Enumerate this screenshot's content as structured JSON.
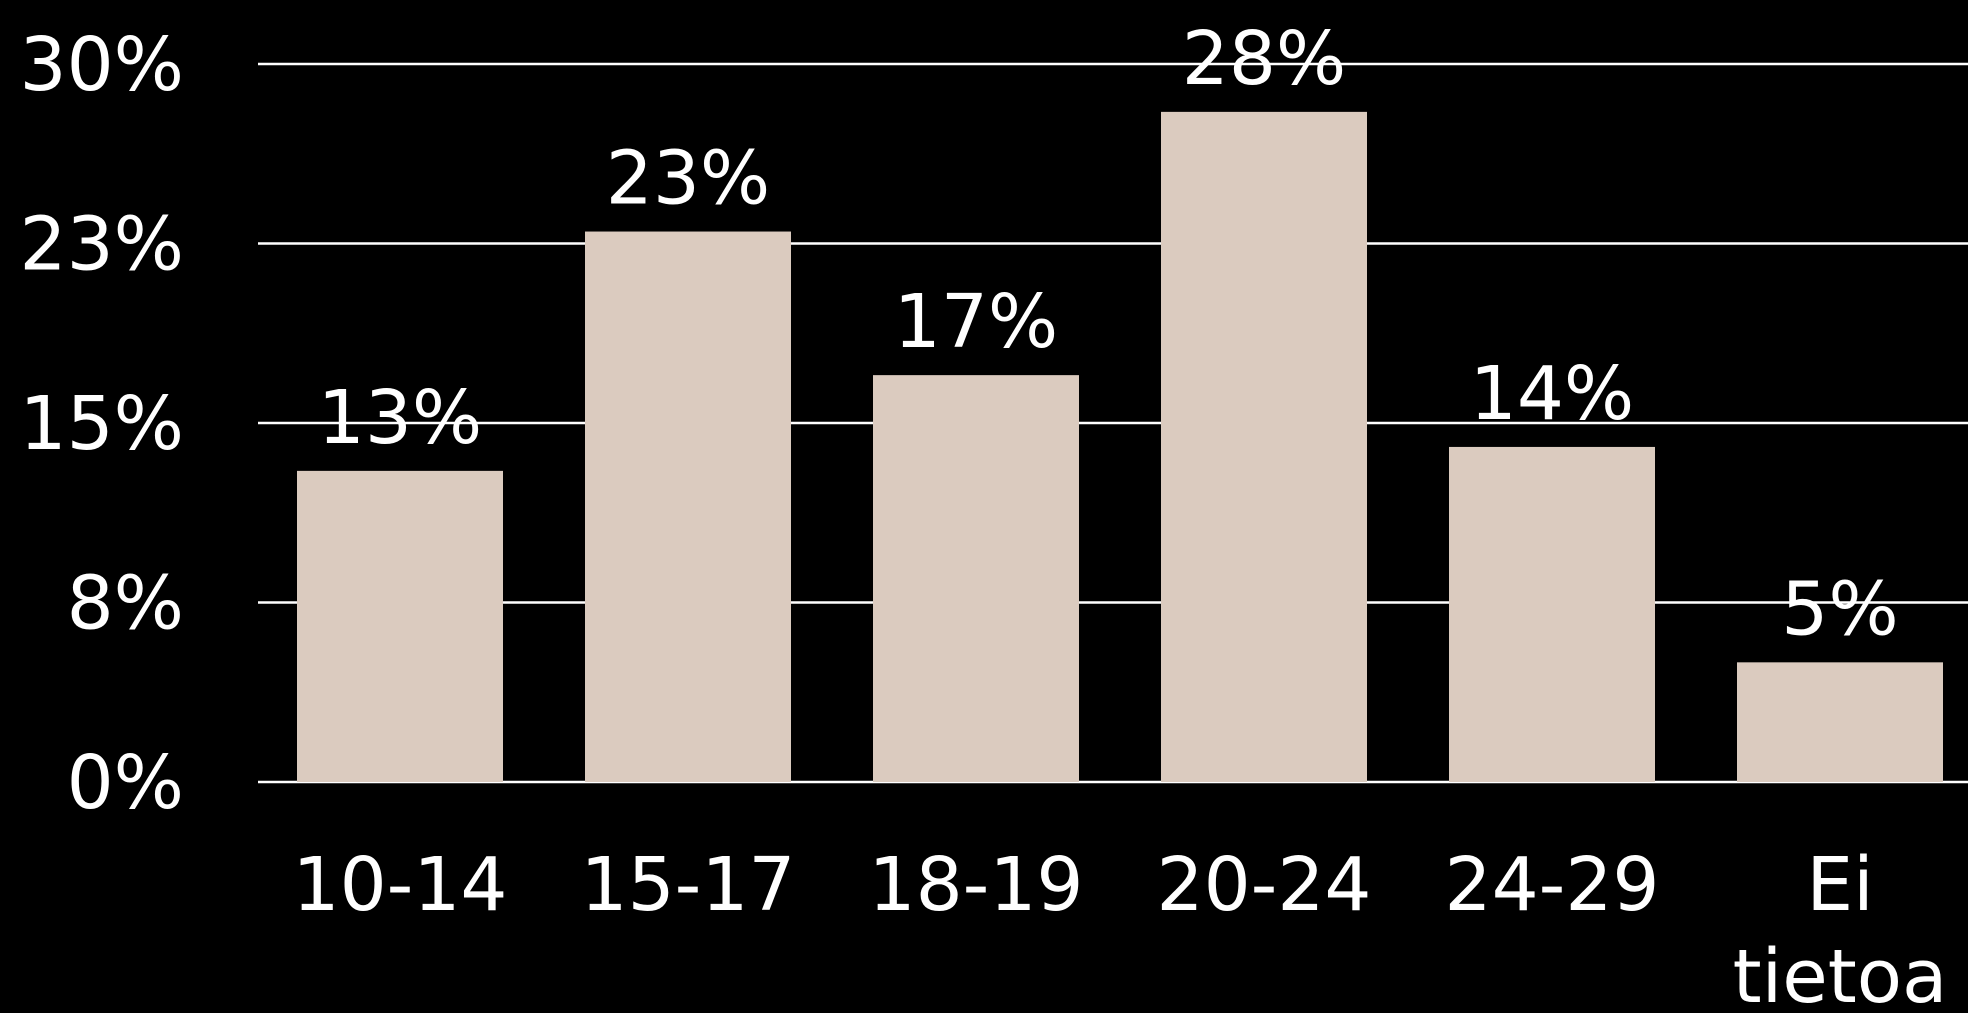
{
  "chart_data": {
    "type": "bar",
    "categories": [
      "10-14",
      "15-17",
      "18-19",
      "20-24",
      "24-29",
      "Ei tietoa"
    ],
    "category_lines": [
      [
        "10-14"
      ],
      [
        "15-17"
      ],
      [
        "18-19"
      ],
      [
        "20-24"
      ],
      [
        "24-29"
      ],
      [
        "Ei",
        "tietoa"
      ]
    ],
    "values": [
      13,
      23,
      17,
      28,
      14,
      5
    ],
    "data_labels": [
      "13%",
      "23%",
      "17%",
      "28%",
      "14%",
      "5%"
    ],
    "y_ticks": [
      0,
      7.5,
      15,
      22.5,
      30
    ],
    "y_tick_labels": [
      "0%",
      "8%",
      "15%",
      "23%",
      "30%"
    ],
    "ylim": [
      0,
      30
    ],
    "grid": true,
    "legend": "none",
    "title": "",
    "xlabel": "",
    "ylabel": "",
    "colors": {
      "background": "#000000",
      "bar": "#dbcbbf",
      "grid": "#ffffff",
      "text": "#ffffff"
    }
  }
}
